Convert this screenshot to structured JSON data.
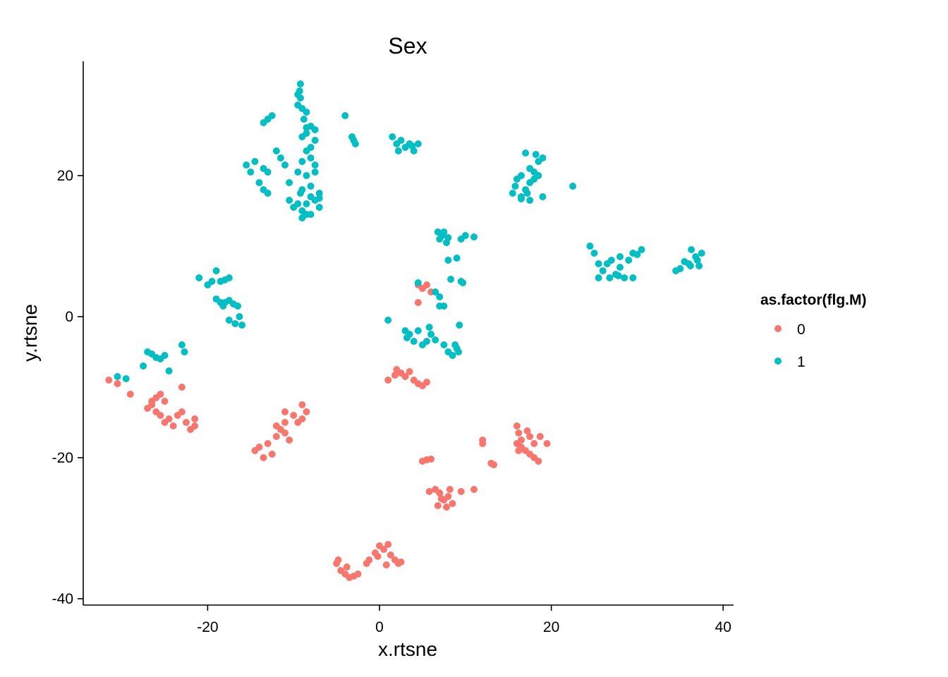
{
  "chart_data": {
    "type": "scatter",
    "title": "Sex",
    "xlabel": "x.rtsne",
    "ylabel": "y.rtsne",
    "xlim": [
      -34,
      41
    ],
    "ylim": [
      -41,
      36
    ],
    "xticks": [
      -20,
      0,
      20,
      40
    ],
    "yticks": [
      -40,
      -20,
      0,
      20
    ],
    "grid": false,
    "legend": {
      "title": "as.factor(flg.M)",
      "position": "right"
    },
    "series": [
      {
        "name": "0",
        "color": "#F8766D",
        "points": [
          [
            -31.5,
            -9
          ],
          [
            -30.5,
            -9.5
          ],
          [
            -29,
            -11
          ],
          [
            -27,
            -13
          ],
          [
            -26.5,
            -12.5
          ],
          [
            -26,
            -11.5
          ],
          [
            -25.5,
            -11
          ],
          [
            -25,
            -12
          ],
          [
            -26,
            -13.5
          ],
          [
            -25.5,
            -14
          ],
          [
            -24.5,
            -14.5
          ],
          [
            -24,
            -15.5
          ],
          [
            -23.5,
            -14
          ],
          [
            -23,
            -13.5
          ],
          [
            -22.5,
            -15
          ],
          [
            -22,
            -16
          ],
          [
            -21.5,
            -15.5
          ],
          [
            -21.5,
            -14.5
          ],
          [
            -23,
            -10
          ],
          [
            -26.5,
            -12
          ],
          [
            -25,
            -15
          ],
          [
            -14.5,
            -19
          ],
          [
            -14,
            -18.5
          ],
          [
            -13.5,
            -20
          ],
          [
            -13,
            -18
          ],
          [
            -12.5,
            -19.5
          ],
          [
            -12,
            -17
          ],
          [
            -11.5,
            -16
          ],
          [
            -11,
            -16.5
          ],
          [
            -10.5,
            -17.5
          ],
          [
            -11,
            -15
          ],
          [
            -10,
            -14
          ],
          [
            -9.5,
            -15
          ],
          [
            -9,
            -14.5
          ],
          [
            -8.5,
            -13.5
          ],
          [
            -9,
            -12.5
          ],
          [
            -11,
            -13.5
          ],
          [
            -12,
            -15.5
          ],
          [
            1,
            -9
          ],
          [
            2,
            -7.5
          ],
          [
            2.5,
            -8
          ],
          [
            3,
            -8.5
          ],
          [
            3.5,
            -7.8
          ],
          [
            4,
            -9
          ],
          [
            4.5,
            -9.5
          ],
          [
            5,
            -9.8
          ],
          [
            5.5,
            -9.3
          ],
          [
            1.8,
            -8.3
          ],
          [
            4.5,
            2
          ],
          [
            4.5,
            4.5
          ],
          [
            5,
            4
          ],
          [
            5.5,
            4.5
          ],
          [
            6,
            3.5
          ],
          [
            5,
            -20.5
          ],
          [
            5.5,
            -20.3
          ],
          [
            6,
            -20.2
          ],
          [
            5.8,
            -24.8
          ],
          [
            6.5,
            -24.5
          ],
          [
            7,
            -25
          ],
          [
            7.5,
            -26
          ],
          [
            7.8,
            -27
          ],
          [
            8,
            -25.5
          ],
          [
            8.5,
            -26.5
          ],
          [
            8.2,
            -24.5
          ],
          [
            7.2,
            -25.8
          ],
          [
            6.8,
            -26.8
          ],
          [
            9.5,
            -24.8
          ],
          [
            11,
            -24.5
          ],
          [
            12,
            -18
          ],
          [
            12,
            -17.5
          ],
          [
            13,
            -20.8
          ],
          [
            13.3,
            -21
          ],
          [
            16,
            -15.5
          ],
          [
            16.2,
            -16.5
          ],
          [
            16.5,
            -17.5
          ],
          [
            16,
            -18
          ],
          [
            16.5,
            -18.5
          ],
          [
            17,
            -19
          ],
          [
            17.5,
            -19.5
          ],
          [
            17.5,
            -17
          ],
          [
            18,
            -18
          ],
          [
            18,
            -20
          ],
          [
            18.5,
            -20.5
          ],
          [
            18.7,
            -17
          ],
          [
            19.5,
            -18
          ],
          [
            16.2,
            -19
          ],
          [
            17.2,
            -16.2
          ],
          [
            -5,
            -35
          ],
          [
            -4.5,
            -36
          ],
          [
            -4,
            -36.5
          ],
          [
            -3.5,
            -37
          ],
          [
            -3,
            -36.8
          ],
          [
            -4.8,
            -34.5
          ],
          [
            -3.8,
            -35.5
          ],
          [
            -2.5,
            -36.5
          ],
          [
            -1.5,
            -35
          ],
          [
            -1.2,
            -34.5
          ],
          [
            -0.5,
            -33.5
          ],
          [
            0,
            -32.5
          ],
          [
            0.5,
            -33
          ],
          [
            1,
            -32.3
          ],
          [
            1.3,
            -33.8
          ],
          [
            1.8,
            -34.5
          ],
          [
            2.2,
            -35
          ],
          [
            2.5,
            -34.8
          ],
          [
            0.8,
            -35.2
          ],
          [
            -0.2,
            -34
          ]
        ]
      },
      {
        "name": "1",
        "color": "#00BFC4",
        "points": [
          [
            -30.5,
            -8.5
          ],
          [
            -29.5,
            -8.8
          ],
          [
            -27.5,
            -7
          ],
          [
            -27,
            -5
          ],
          [
            -26.5,
            -5.3
          ],
          [
            -26,
            -5.8
          ],
          [
            -25.5,
            -6
          ],
          [
            -25,
            -5.5
          ],
          [
            -24.5,
            -7.7
          ],
          [
            -23,
            -4
          ],
          [
            -22.7,
            -5
          ],
          [
            -21,
            5.5
          ],
          [
            -20,
            4.5
          ],
          [
            -19.5,
            5
          ],
          [
            -19,
            6.5
          ],
          [
            -18.5,
            5
          ],
          [
            -18,
            5.2
          ],
          [
            -17.5,
            5.5
          ],
          [
            -19,
            2.5
          ],
          [
            -18.5,
            2
          ],
          [
            -18,
            2
          ],
          [
            -17.5,
            2.3
          ],
          [
            -17,
            1.8
          ],
          [
            -16.5,
            1.5
          ],
          [
            -17.5,
            -0.5
          ],
          [
            -16.8,
            -1
          ],
          [
            -16,
            -1.2
          ],
          [
            -16.3,
            0
          ],
          [
            -18.2,
            1.5
          ],
          [
            -15.5,
            21.5
          ],
          [
            -15,
            20.5
          ],
          [
            -14.5,
            22
          ],
          [
            -14,
            19
          ],
          [
            -13.5,
            18
          ],
          [
            -13,
            17.5
          ],
          [
            -13.5,
            21
          ],
          [
            -13,
            20.5
          ],
          [
            -12,
            23.5
          ],
          [
            -11.5,
            22.5
          ],
          [
            -11,
            21.5
          ],
          [
            -13.5,
            27.5
          ],
          [
            -13,
            28
          ],
          [
            -12.5,
            28.5
          ],
          [
            -10.5,
            19
          ],
          [
            -10.5,
            16.5
          ],
          [
            -10,
            15.5
          ],
          [
            -9.5,
            16
          ],
          [
            -9,
            15
          ],
          [
            -9,
            14
          ],
          [
            -8.5,
            14.5
          ],
          [
            -8,
            14.5
          ],
          [
            -8.5,
            16
          ],
          [
            -8,
            17
          ],
          [
            -7.5,
            16.5
          ],
          [
            -7,
            15.5
          ],
          [
            -7,
            17.5
          ],
          [
            -8,
            18.5
          ],
          [
            -8.5,
            20
          ],
          [
            -7.5,
            20.5
          ],
          [
            -7.5,
            21.5
          ],
          [
            -8,
            22.5
          ],
          [
            -8.5,
            23.5
          ],
          [
            -8,
            24
          ],
          [
            -7.5,
            25
          ],
          [
            -8.5,
            26
          ],
          [
            -8,
            27
          ],
          [
            -7.5,
            26.5
          ],
          [
            -9,
            25.5
          ],
          [
            -9,
            22
          ],
          [
            -9.5,
            20.5
          ],
          [
            -9,
            18
          ],
          [
            -9.5,
            30
          ],
          [
            -9.2,
            31
          ],
          [
            -9.3,
            32
          ],
          [
            -9.2,
            33
          ],
          [
            -9,
            29.5
          ],
          [
            -8.8,
            28
          ],
          [
            -8.5,
            29
          ],
          [
            -9.5,
            31.5
          ],
          [
            -8.5,
            26.8
          ],
          [
            -7,
            16.8
          ],
          [
            -9.2,
            17.5
          ],
          [
            -4,
            28.5
          ],
          [
            -3,
            25
          ],
          [
            -2.8,
            24.5
          ],
          [
            -3.2,
            25.5
          ],
          [
            1.5,
            25.5
          ],
          [
            2,
            24.5
          ],
          [
            2.5,
            25
          ],
          [
            3,
            24
          ],
          [
            3.5,
            24.5
          ],
          [
            4,
            23.5
          ],
          [
            4.5,
            24.5
          ],
          [
            2.2,
            23.5
          ],
          [
            3.8,
            24.2
          ],
          [
            1,
            -0.5
          ],
          [
            3,
            -2
          ],
          [
            3.2,
            -3
          ],
          [
            3.5,
            -2.5
          ],
          [
            4,
            -3.5
          ],
          [
            4.5,
            -2
          ],
          [
            5,
            -4
          ],
          [
            5.5,
            -3.5
          ],
          [
            5.8,
            -1.5
          ],
          [
            6,
            -2.5
          ],
          [
            6.5,
            -3.3
          ],
          [
            7,
            1.5
          ],
          [
            7.5,
            1.5
          ],
          [
            6.5,
            3.5
          ],
          [
            7.5,
            -4
          ],
          [
            8,
            -5
          ],
          [
            8.5,
            -5.5
          ],
          [
            9,
            -4.5
          ],
          [
            9.2,
            -5
          ],
          [
            9.3,
            -1.2
          ],
          [
            4.5,
            4.8
          ],
          [
            7,
            11
          ],
          [
            6.8,
            12
          ],
          [
            7.3,
            11.5
          ],
          [
            7.8,
            10.5
          ],
          [
            7.5,
            12
          ],
          [
            8,
            11.2
          ],
          [
            9.5,
            11
          ],
          [
            10,
            11.5
          ],
          [
            11,
            11.3
          ],
          [
            9,
            8.3
          ],
          [
            8,
            8
          ],
          [
            8.3,
            5.3
          ],
          [
            9.5,
            5
          ],
          [
            9.7,
            4.8
          ],
          [
            8.8,
            -4
          ],
          [
            7,
            2.8
          ],
          [
            15.5,
            17.5
          ],
          [
            15.8,
            18.5
          ],
          [
            16,
            19.5
          ],
          [
            16.5,
            20
          ],
          [
            17,
            18
          ],
          [
            16.5,
            17
          ],
          [
            17.2,
            17.5
          ],
          [
            17.5,
            19
          ],
          [
            17.5,
            21
          ],
          [
            18,
            20.5
          ],
          [
            18.5,
            22
          ],
          [
            18.2,
            23
          ],
          [
            18.5,
            20
          ],
          [
            19,
            22.5
          ],
          [
            19,
            17
          ],
          [
            18,
            19.5
          ],
          [
            16.5,
            16.7
          ],
          [
            17.5,
            16.5
          ],
          [
            17,
            23.2
          ],
          [
            22.5,
            18.5
          ],
          [
            24.5,
            10
          ],
          [
            25,
            9
          ],
          [
            25.5,
            7.5
          ],
          [
            25.5,
            5.5
          ],
          [
            26,
            6.5
          ],
          [
            26.5,
            7.5
          ],
          [
            27,
            8
          ],
          [
            27.5,
            6
          ],
          [
            28,
            7
          ],
          [
            28,
            8.5
          ],
          [
            28.5,
            5.5
          ],
          [
            29,
            8
          ],
          [
            29.5,
            9
          ],
          [
            29.5,
            5.5
          ],
          [
            30,
            8.8
          ],
          [
            30.5,
            9.5
          ],
          [
            26.8,
            5.5
          ],
          [
            27.8,
            5.8
          ],
          [
            34.5,
            6.5
          ],
          [
            35,
            6.8
          ],
          [
            35.5,
            7.8
          ],
          [
            36,
            7.5
          ],
          [
            36.3,
            9.5
          ],
          [
            36.8,
            8.5
          ],
          [
            37,
            8
          ],
          [
            37.2,
            7.2
          ],
          [
            37.5,
            9
          ],
          [
            36.2,
            7.2
          ]
        ]
      }
    ]
  }
}
